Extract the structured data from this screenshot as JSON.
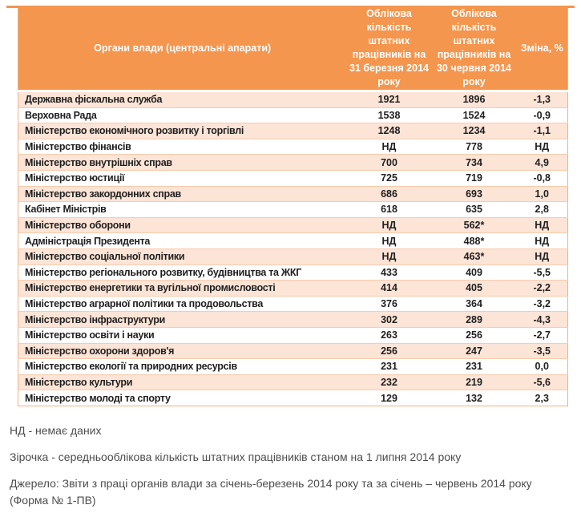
{
  "colors": {
    "header_bg": "#F4964E",
    "row_alt": "#FCE4D6",
    "row_border": "#F8CBAD",
    "outer_border": "#F4B183",
    "body_text": "#1f1f1f",
    "note_text": "#4d4d4d"
  },
  "table": {
    "columns": [
      "Органи влади (центральні апарати)",
      "Облікова кількість штатних працівників на 31 березня 2014 року",
      "Облікова кількість штатних працівників на 30 червня 2014 року",
      "Зміна, %"
    ],
    "rows": [
      [
        "Державна фіскальна служба",
        "1921",
        "1896",
        "-1,3"
      ],
      [
        "Верховна Рада",
        "1538",
        "1524",
        "-0,9"
      ],
      [
        "Міністерство економічного розвитку і торгівлі",
        "1248",
        "1234",
        "-1,1"
      ],
      [
        "Міністерство фінансів",
        "НД",
        "778",
        "НД"
      ],
      [
        "Міністерство внутрішніх справ",
        "700",
        "734",
        "4,9"
      ],
      [
        "Міністерство юстиції",
        "725",
        "719",
        "-0,8"
      ],
      [
        "Міністерство закордонних справ",
        "686",
        "693",
        "1,0"
      ],
      [
        "Кабінет Міністрів",
        "618",
        "635",
        "2,8"
      ],
      [
        "Міністерство оборони",
        "НД",
        "562*",
        "НД"
      ],
      [
        "Адміністрація Президента",
        "НД",
        "488*",
        "НД"
      ],
      [
        "Міністерство соціальної політики",
        "НД",
        "463*",
        "НД"
      ],
      [
        "Міністерство регіонального розвитку, будівництва та ЖКГ",
        "433",
        "409",
        "-5,5"
      ],
      [
        "Міністерство енергетики та вугільної промисловості",
        "414",
        "405",
        "-2,2"
      ],
      [
        "Міністерство аграрної політики та продовольства",
        "376",
        "364",
        "-3,2"
      ],
      [
        "Міністерство інфраструктури",
        "302",
        "289",
        "-4,3"
      ],
      [
        "Міністерство освіти і науки",
        "263",
        "256",
        "-2,7"
      ],
      [
        "Міністерство охорони здоров'я",
        "256",
        "247",
        "-3,5"
      ],
      [
        "Міністерство екології та природних ресурсів",
        "231",
        "231",
        "0,0"
      ],
      [
        "Міністерство культури",
        "232",
        "219",
        "-5,6"
      ],
      [
        "Міністерство молоді та спорту",
        "129",
        "132",
        "2,3"
      ]
    ]
  },
  "footnotes": {
    "nd": "НД - немає даних",
    "star": "Зірочка - середньооблікова кількість штатних працівників станом на 1 липня 2014 року",
    "source": "Джерело: Звіти з праці органів влади за січень-березень 2014 року та за січень – червень 2014 року (Форма № 1-ПВ)"
  }
}
